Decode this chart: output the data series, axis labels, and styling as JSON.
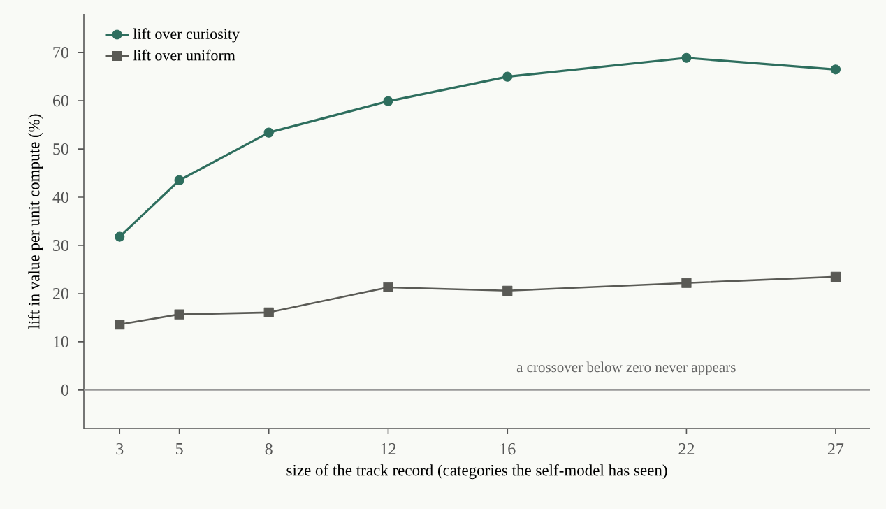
{
  "chart_data": {
    "type": "line",
    "xlabel": "size of the track record (categories the self-model has seen)",
    "ylabel": "lift in value per unit compute (%)",
    "x": [
      3,
      5,
      8,
      12,
      16,
      22,
      27
    ],
    "series": [
      {
        "name": "lift over curiosity",
        "color": "#2e6e5e",
        "marker": "circle",
        "values": [
          31.8,
          43.5,
          53.4,
          59.9,
          65.0,
          68.9,
          66.5
        ]
      },
      {
        "name": "lift over uniform",
        "color": "#5a5a55",
        "marker": "square",
        "values": [
          13.6,
          15.7,
          16.1,
          21.3,
          20.6,
          22.2,
          23.5
        ]
      }
    ],
    "xlim": [
      1.8,
      28.15
    ],
    "ylim": [
      -8,
      78
    ],
    "xticks": [
      3,
      5,
      8,
      12,
      16,
      22,
      27
    ],
    "yticks": [
      0,
      10,
      20,
      30,
      40,
      50,
      60,
      70
    ],
    "ref_lines": [
      {
        "axis": "y",
        "value": 0,
        "color": "#999999"
      }
    ],
    "annotations": [
      "a crossover below zero never appears"
    ],
    "legend": "top left",
    "grid": false
  }
}
